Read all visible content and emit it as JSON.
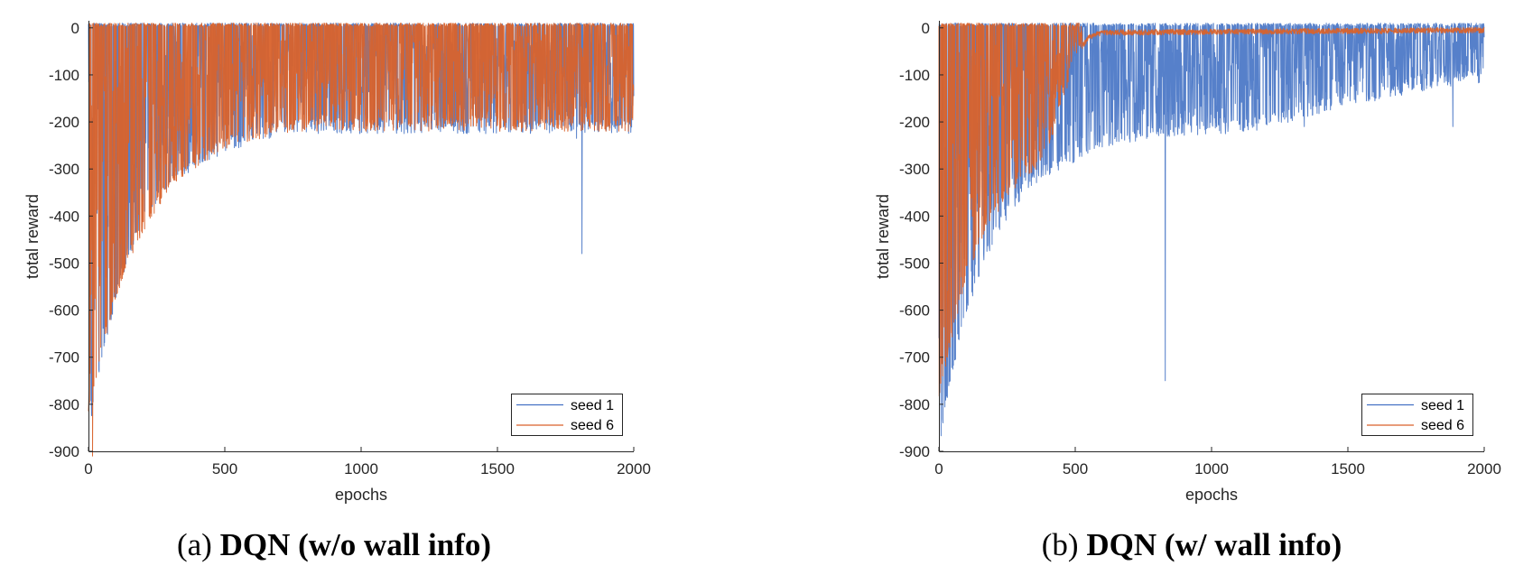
{
  "chart_data": [
    {
      "type": "line",
      "caption_label": "(a)",
      "title": "DQN (w/o wall info)",
      "xlabel": "epochs",
      "ylabel": "total reward",
      "xlim": [
        0,
        2000
      ],
      "ylim": [
        -900,
        15
      ],
      "xticks": [
        0,
        500,
        1000,
        1500,
        2000
      ],
      "xtick_labels": [
        "0",
        "500",
        "1000",
        "1500",
        "2000"
      ],
      "yticks": [
        0,
        -100,
        -200,
        -300,
        -400,
        -500,
        -600,
        -700,
        -800,
        -900
      ],
      "ytick_labels": [
        "0",
        "-100",
        "-200",
        "-300",
        "-400",
        "-500",
        "-600",
        "-700",
        "-800",
        "-900"
      ],
      "grid": false,
      "legend": "bottom-right",
      "series": [
        {
          "name": "seed 1",
          "color": "#4472C4",
          "trend": {
            "x": [
              0,
              50,
              100,
              150,
              200,
              250,
              300,
              350,
              400,
              500,
              600,
              700,
              800,
              1000,
              1500,
              2000
            ],
            "y": [
              -860,
              -700,
              -560,
              -470,
              -410,
              -360,
              -320,
              -300,
              -280,
              -250,
              -230,
              -215,
              -210,
              -210,
              -210,
              -210
            ]
          },
          "spikes": [
            {
              "x": 1810,
              "y": -480
            },
            {
              "x": 1790,
              "y": -235
            }
          ]
        },
        {
          "name": "seed 6",
          "color": "#D9622B",
          "trend": {
            "x": [
              0,
              50,
              100,
              150,
              200,
              250,
              300,
              350,
              400,
              500,
              600,
              700,
              800,
              1000,
              1500,
              2000
            ],
            "y": [
              -800,
              -680,
              -560,
              -480,
              -420,
              -370,
              -330,
              -300,
              -280,
              -245,
              -225,
              -210,
              -205,
              -205,
              -205,
              -205
            ]
          },
          "spikes": [
            {
              "x": 15,
              "y": -910
            },
            {
              "x": 10,
              "y": -240
            }
          ]
        }
      ]
    },
    {
      "type": "line",
      "caption_label": "(b)",
      "title": "DQN (w/ wall info)",
      "xlabel": "epochs",
      "ylabel": "total reward",
      "xlim": [
        0,
        2000
      ],
      "ylim": [
        -900,
        15
      ],
      "xticks": [
        0,
        500,
        1000,
        1500,
        2000
      ],
      "xtick_labels": [
        "0",
        "500",
        "1000",
        "1500",
        "2000"
      ],
      "yticks": [
        0,
        -100,
        -200,
        -300,
        -400,
        -500,
        -600,
        -700,
        -800,
        -900
      ],
      "ytick_labels": [
        "0",
        "-100",
        "-200",
        "-300",
        "-400",
        "-500",
        "-600",
        "-700",
        "-800",
        "-900"
      ],
      "grid": false,
      "legend": "bottom-right",
      "series": [
        {
          "name": "seed 1",
          "color": "#4472C4",
          "trend": {
            "x": [
              0,
              50,
              100,
              150,
              200,
              250,
              300,
              350,
              400,
              500,
              600,
              700,
              800,
              900,
              1000,
              1100,
              1200,
              1500,
              2000
            ],
            "y": [
              -880,
              -720,
              -600,
              -510,
              -440,
              -390,
              -350,
              -320,
              -300,
              -270,
              -240,
              -230,
              -220,
              -215,
              -210,
              -210,
              -200,
              -150,
              -100
            ]
          },
          "spikes": [
            {
              "x": 830,
              "y": -750
            },
            {
              "x": 1340,
              "y": -210
            },
            {
              "x": 1700,
              "y": -135
            },
            {
              "x": 1885,
              "y": -210
            },
            {
              "x": 1500,
              "y": -60
            },
            {
              "x": 1310,
              "y": -130
            },
            {
              "x": 1050,
              "y": -200
            }
          ]
        },
        {
          "name": "seed 6",
          "color": "#D9622B",
          "trend": {
            "x": [
              0,
              50,
              100,
              150,
              200,
              250,
              300,
              350,
              400,
              450,
              500,
              550,
              600,
              2000
            ],
            "y": [
              -780,
              -640,
              -520,
              -450,
              -390,
              -350,
              -310,
              -290,
              -250,
              -150,
              -60,
              -20,
              -10,
              -5
            ]
          },
          "spikes": [
            {
              "x": 5,
              "y": -240
            }
          ]
        }
      ]
    }
  ]
}
